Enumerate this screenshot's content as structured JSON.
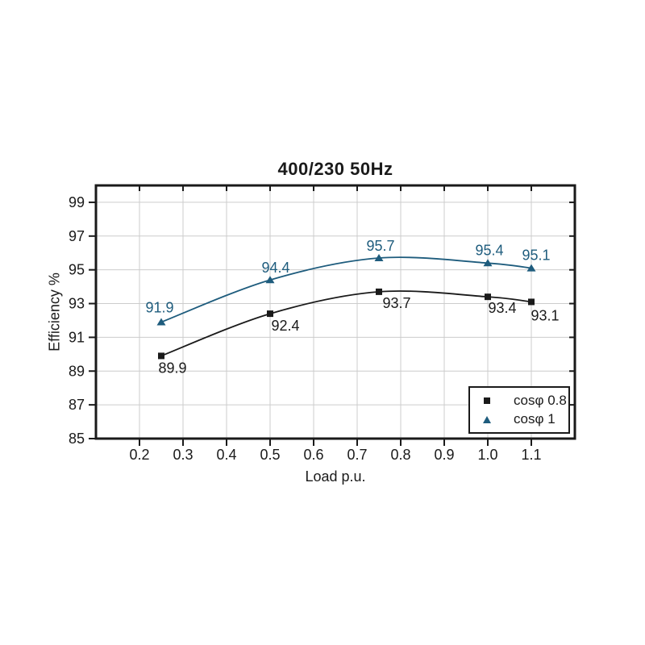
{
  "page": {
    "background_color": "#ffffff"
  },
  "chart_data": {
    "type": "line",
    "title": "400/230 50Hz",
    "xlabel": "Load p.u.",
    "ylabel": "Efficiency %",
    "xlim": [
      0.1,
      1.2
    ],
    "ylim": [
      85,
      100
    ],
    "x_ticks": [
      0.2,
      0.3,
      0.4,
      0.5,
      0.6,
      0.7,
      0.8,
      0.9,
      1.0,
      1.1
    ],
    "x_tick_labels": [
      "0.2",
      "0.3",
      "0.4",
      "0.5",
      "0.6",
      "0.7",
      "0.8",
      "0.9",
      "1.0",
      "1.1"
    ],
    "y_ticks": [
      85,
      87,
      89,
      91,
      93,
      95,
      97,
      99
    ],
    "y_tick_labels": [
      "85",
      "87",
      "89",
      "91",
      "93",
      "95",
      "97",
      "99"
    ],
    "grid": true,
    "grid_color": "#cccccc",
    "axis_color": "#1a1a1a",
    "legend": {
      "position": "lower right",
      "entries": [
        "cosφ 0.8",
        "cosφ 1"
      ]
    },
    "series": [
      {
        "name": "cosφ 0.8",
        "marker": "square",
        "color": "#1a1a1a",
        "x": [
          0.25,
          0.5,
          0.75,
          1.0,
          1.1
        ],
        "values": [
          89.9,
          92.4,
          93.7,
          93.4,
          93.1
        ],
        "point_labels": [
          "89.9",
          "92.4",
          "93.7",
          "93.4",
          "93.1"
        ],
        "label_offsets": [
          [
            14,
            15
          ],
          [
            19,
            15
          ],
          [
            22,
            14
          ],
          [
            18,
            14
          ],
          [
            17,
            17
          ]
        ]
      },
      {
        "name": "cosφ 1",
        "marker": "triangle",
        "color": "#1e5c7d",
        "x": [
          0.25,
          0.5,
          0.75,
          1.0,
          1.1
        ],
        "values": [
          91.9,
          94.4,
          95.7,
          95.4,
          95.1
        ],
        "point_labels": [
          "91.9",
          "94.4",
          "95.7",
          "95.4",
          "95.1"
        ],
        "label_offsets": [
          [
            -2,
            -18
          ],
          [
            7,
            -15
          ],
          [
            2,
            -15
          ],
          [
            2,
            -16
          ],
          [
            6,
            -16
          ]
        ]
      }
    ]
  }
}
